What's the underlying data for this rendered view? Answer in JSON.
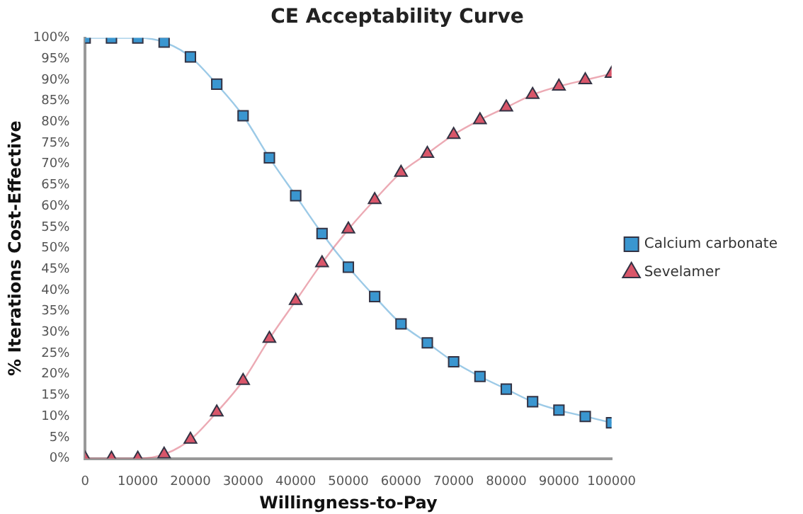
{
  "chart_data": {
    "type": "line",
    "title": "CE Acceptability Curve",
    "xlabel": "Willingness-to-Pay",
    "ylabel": "% Iterations Cost-Effective",
    "x": [
      0,
      5000,
      10000,
      15000,
      20000,
      25000,
      30000,
      35000,
      40000,
      45000,
      50000,
      55000,
      60000,
      65000,
      70000,
      75000,
      80000,
      85000,
      90000,
      95000,
      100000
    ],
    "series": [
      {
        "name": "Calcium carbonate",
        "color": "#3a96d0",
        "marker": "square",
        "values": [
          100,
          100,
          100,
          99,
          95.5,
          89,
          81.5,
          71.5,
          62.5,
          53.5,
          45.5,
          38.5,
          32,
          27.5,
          23,
          19.5,
          16.5,
          13.5,
          11.5,
          10,
          8.5
        ]
      },
      {
        "name": "Sevelamer",
        "color": "#d9566a",
        "marker": "triangle",
        "values": [
          0,
          0,
          0,
          1,
          4.5,
          11,
          18.5,
          28.5,
          37.5,
          46.5,
          54.5,
          61.5,
          68,
          72.5,
          77,
          80.5,
          83.5,
          86.5,
          88.5,
          90,
          91.5
        ]
      }
    ],
    "xlim": [
      0,
      100000
    ],
    "xticks": [
      0,
      10000,
      20000,
      30000,
      40000,
      50000,
      60000,
      70000,
      80000,
      90000,
      100000
    ],
    "ylim": [
      0,
      100
    ],
    "yticks": [
      {
        "value": 0,
        "label": "0%"
      },
      {
        "value": 5,
        "label": "5%"
      },
      {
        "value": 10,
        "label": "10%"
      },
      {
        "value": 15,
        "label": "15%"
      },
      {
        "value": 20,
        "label": "20%"
      },
      {
        "value": 25,
        "label": "25%"
      },
      {
        "value": 30,
        "label": "30%"
      },
      {
        "value": 35,
        "label": "35%"
      },
      {
        "value": 40,
        "label": "40%"
      },
      {
        "value": 45,
        "label": "45%"
      },
      {
        "value": 50,
        "label": "50%"
      },
      {
        "value": 55,
        "label": "55%"
      },
      {
        "value": 60,
        "label": "60%"
      },
      {
        "value": 65,
        "label": "65%"
      },
      {
        "value": 70,
        "label": "70%"
      },
      {
        "value": 75,
        "label": "75%"
      },
      {
        "value": 80,
        "label": "80%"
      },
      {
        "value": 85,
        "label": "85%"
      },
      {
        "value": 90,
        "label": "90%"
      },
      {
        "value": 95,
        "label": "95%"
      },
      {
        "value": 100,
        "label": "100%"
      }
    ],
    "grid": false,
    "legend": "right",
    "line_style": "solid"
  }
}
